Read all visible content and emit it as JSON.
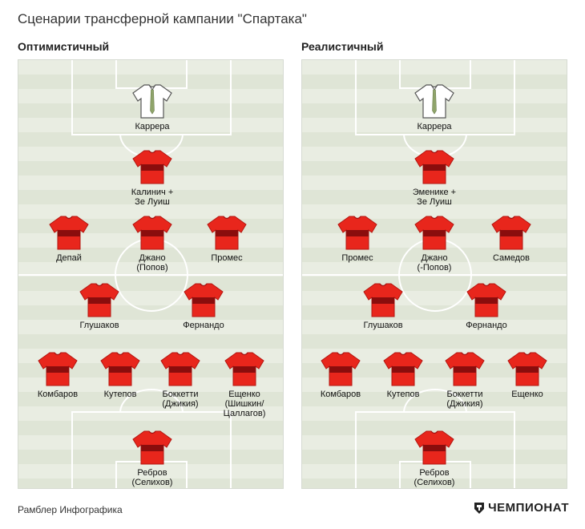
{
  "title": "Сценарии трансферной кампании \"Спартака\"",
  "colors": {
    "home_shirt": "#e8261c",
    "home_trim": "#8a0d0d",
    "gk_shirt": "#ffffff",
    "gk_trim": "#8fa46a",
    "pitch_light": "#e9ede2",
    "pitch_dark": "#dfe5d6"
  },
  "formations": [
    {
      "subtitle": "Оптимистичный",
      "players": [
        {
          "name": "Каррера",
          "kit": "gk"
        },
        {
          "name": "Калинич +\nЗе Луиш",
          "kit": "home"
        },
        {
          "name": "Депай",
          "kit": "home"
        },
        {
          "name": "Джано\n(Попов)",
          "kit": "home"
        },
        {
          "name": "Промес",
          "kit": "home"
        },
        {
          "name": "Глушаков",
          "kit": "home"
        },
        {
          "name": "Фернандо",
          "kit": "home"
        },
        {
          "name": "Комбаров",
          "kit": "home"
        },
        {
          "name": "Кутепов",
          "kit": "home"
        },
        {
          "name": "Боккетти\n(Джикия)",
          "kit": "home"
        },
        {
          "name": "Ещенко\n(Шишкин/\nЦаллагов)",
          "kit": "home"
        },
        {
          "name": "Ребров\n(Селихов)",
          "kit": "home"
        }
      ]
    },
    {
      "subtitle": "Реалистичный",
      "players": [
        {
          "name": "Каррера",
          "kit": "gk"
        },
        {
          "name": "Эменике +\nЗе Луиш",
          "kit": "home"
        },
        {
          "name": "Промес",
          "kit": "home"
        },
        {
          "name": "Джано\n(-Попов)",
          "kit": "home"
        },
        {
          "name": "Самедов",
          "kit": "home"
        },
        {
          "name": "Глушаков",
          "kit": "home"
        },
        {
          "name": "Фернандо",
          "kit": "home"
        },
        {
          "name": "Комбаров",
          "kit": "home"
        },
        {
          "name": "Кутепов",
          "kit": "home"
        },
        {
          "name": "Боккетти\n(Джикия)",
          "kit": "home"
        },
        {
          "name": "Ещенко",
          "kit": "home"
        },
        {
          "name": "Ребров\n(Селихов)",
          "kit": "home"
        }
      ]
    }
  ],
  "footer": {
    "source": "Рамблер Инфографика",
    "brand": "ЧЕМПИОНАТ"
  }
}
